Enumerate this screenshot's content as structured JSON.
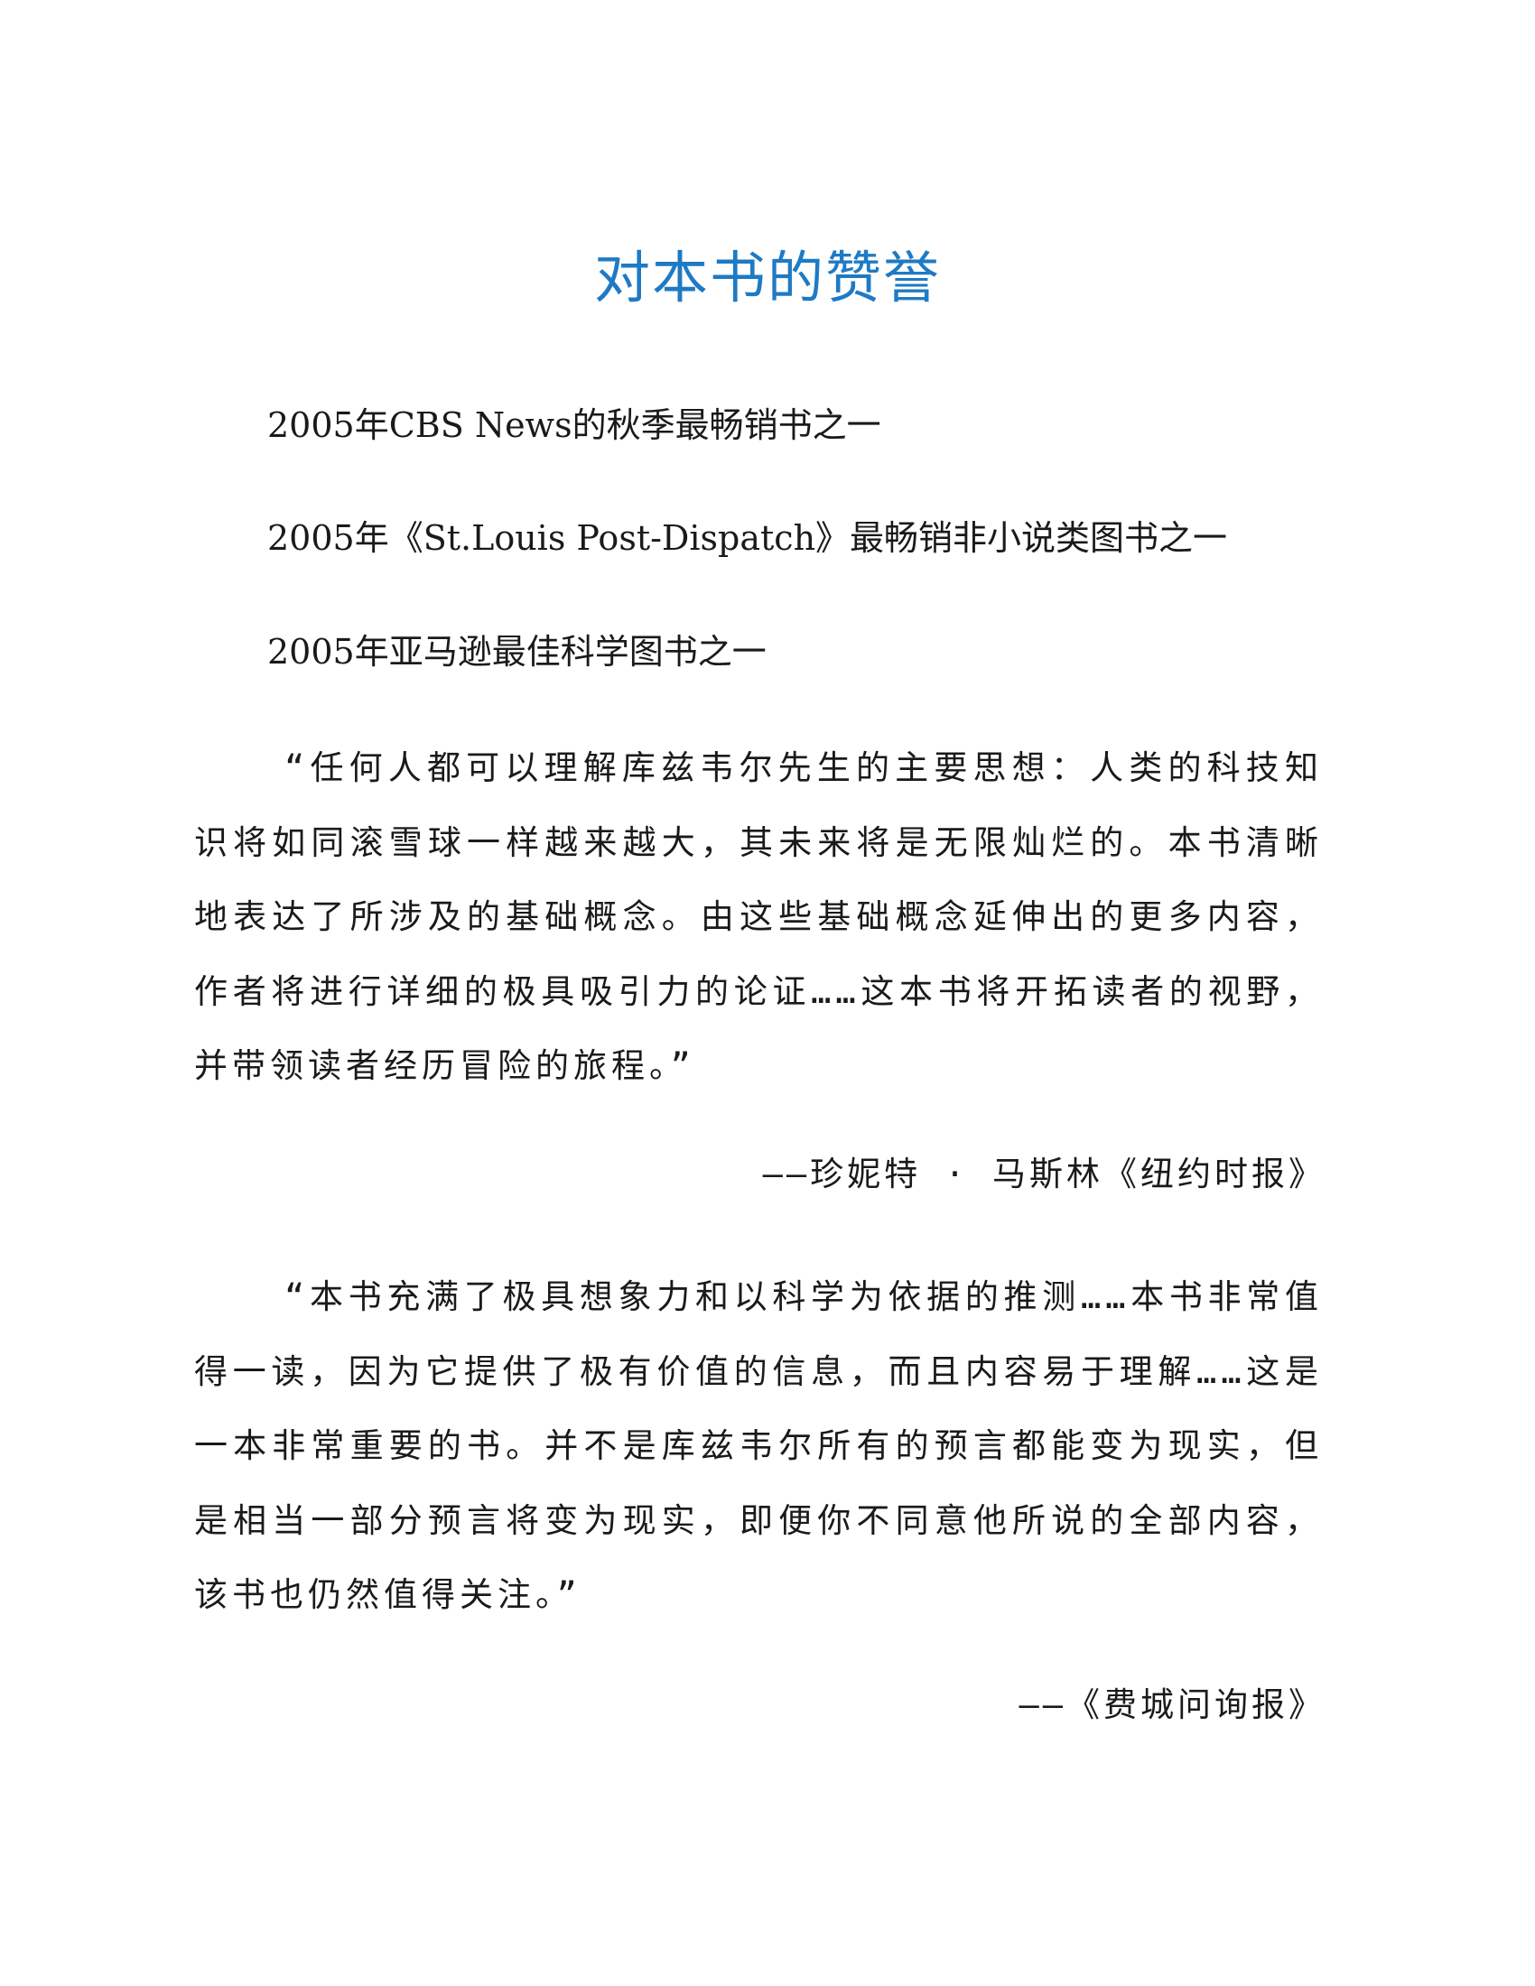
{
  "title": "对本书的赞誉",
  "honors": [
    "2005年CBS News的秋季最畅销书之一",
    "2005年《St.Louis Post-Dispatch》最畅销非小说类图书之一",
    "2005年亚马逊最佳科学图书之一"
  ],
  "quotes": [
    {
      "text": "“任何人都可以理解库兹韦尔先生的主要思想：人类的科技知识将如同滚雪球一样越来越大，其未来将是无限灿烂的。本书清晰地表达了所涉及的基础概念。由这些基础概念延伸出的更多内容，作者将进行详细的极具吸引力的论证……这本书将开拓读者的视野，并带领读者经历冒险的旅程。”",
      "source": "——珍妮特 · 马斯林《纽约时报》"
    },
    {
      "text": "“本书充满了极具想象力和以科学为依据的推测……本书非常值得一读，因为它提供了极有价值的信息，而且内容易于理解……这是一本非常重要的书。并不是库兹韦尔所有的预言都能变为现实，但是相当一部分预言将变为现实，即便你不同意他所说的全部内容，该书也仍然值得关注。”",
      "source": "——《费城问询报》"
    }
  ]
}
